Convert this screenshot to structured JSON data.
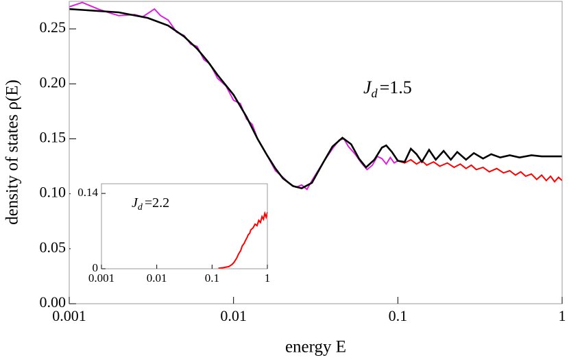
{
  "chart_data": [
    {
      "type": "line",
      "xlabel": "energy E",
      "ylabel": "density of states ρ(E)",
      "annotation": {
        "main": "J",
        "sub": "d",
        "rest": "=1.5"
      },
      "xscale": "log",
      "xlim": [
        0.001,
        1
      ],
      "ylim": [
        0,
        0.275
      ],
      "xticks": [
        0.001,
        0.01,
        0.1,
        1
      ],
      "yticks": [
        {
          "value": 0,
          "label": "0.00"
        },
        0.05,
        {
          "value": 0.1,
          "label": "0.10"
        },
        0.15,
        {
          "value": 0.2,
          "label": "0.20"
        },
        0.25
      ],
      "series": [
        {
          "color": "#e020e0",
          "x": [
            0.001,
            0.0012,
            0.0015,
            0.0018,
            0.002,
            0.0025,
            0.0028,
            0.0033,
            0.0036,
            0.004,
            0.0045,
            0.005,
            0.0055,
            0.006,
            0.0066,
            0.0072,
            0.008,
            0.009,
            0.01,
            0.011,
            0.012,
            0.013,
            0.014,
            0.015,
            0.016,
            0.018,
            0.02,
            0.022,
            0.024,
            0.026,
            0.028,
            0.03,
            0.033,
            0.036,
            0.04,
            0.044,
            0.047,
            0.05,
            0.055,
            0.06,
            0.065,
            0.07,
            0.075,
            0.08,
            0.085,
            0.09,
            0.095,
            0.1
          ],
          "values": [
            0.27,
            0.274,
            0.268,
            0.264,
            0.262,
            0.263,
            0.261,
            0.268,
            0.262,
            0.258,
            0.247,
            0.244,
            0.236,
            0.234,
            0.222,
            0.218,
            0.205,
            0.198,
            0.185,
            0.182,
            0.168,
            0.163,
            0.15,
            0.142,
            0.135,
            0.121,
            0.115,
            0.109,
            0.106,
            0.108,
            0.104,
            0.112,
            0.122,
            0.131,
            0.141,
            0.149,
            0.15,
            0.143,
            0.136,
            0.128,
            0.122,
            0.126,
            0.134,
            0.132,
            0.127,
            0.133,
            0.128,
            0.13
          ]
        },
        {
          "color": "#ff0000",
          "x": [
            0.1,
            0.11,
            0.12,
            0.13,
            0.14,
            0.15,
            0.165,
            0.18,
            0.2,
            0.22,
            0.24,
            0.26,
            0.28,
            0.3,
            0.33,
            0.36,
            0.4,
            0.44,
            0.48,
            0.52,
            0.56,
            0.6,
            0.65,
            0.7,
            0.75,
            0.8,
            0.85,
            0.9,
            0.95,
            1
          ],
          "values": [
            0.13,
            0.128,
            0.131,
            0.127,
            0.13,
            0.126,
            0.129,
            0.125,
            0.128,
            0.124,
            0.127,
            0.123,
            0.126,
            0.122,
            0.124,
            0.12,
            0.123,
            0.119,
            0.121,
            0.117,
            0.12,
            0.116,
            0.118,
            0.113,
            0.117,
            0.112,
            0.116,
            0.111,
            0.115,
            0.112
          ]
        },
        {
          "color": "#000000",
          "x": [
            0.001,
            0.002,
            0.003,
            0.004,
            0.005,
            0.006,
            0.007,
            0.008,
            0.01,
            0.012,
            0.014,
            0.016,
            0.018,
            0.02,
            0.023,
            0.026,
            0.03,
            0.035,
            0.04,
            0.046,
            0.052,
            0.058,
            0.064,
            0.072,
            0.08,
            0.085,
            0.092,
            0.1,
            0.11,
            0.12,
            0.13,
            0.14,
            0.155,
            0.17,
            0.19,
            0.21,
            0.23,
            0.26,
            0.29,
            0.33,
            0.37,
            0.42,
            0.48,
            0.55,
            0.65,
            0.75,
            0.85,
            1
          ],
          "values": [
            0.268,
            0.265,
            0.26,
            0.253,
            0.243,
            0.232,
            0.22,
            0.208,
            0.19,
            0.17,
            0.15,
            0.135,
            0.123,
            0.114,
            0.107,
            0.105,
            0.11,
            0.128,
            0.143,
            0.151,
            0.145,
            0.132,
            0.124,
            0.131,
            0.142,
            0.144,
            0.138,
            0.13,
            0.129,
            0.141,
            0.136,
            0.129,
            0.14,
            0.131,
            0.139,
            0.131,
            0.138,
            0.131,
            0.137,
            0.132,
            0.136,
            0.133,
            0.135,
            0.133,
            0.135,
            0.134,
            0.134,
            0.134
          ]
        }
      ]
    },
    {
      "type": "line",
      "annotation": {
        "main": "J",
        "sub": "d",
        "rest": "=2.2"
      },
      "xscale": "log",
      "xlim": [
        0.001,
        1
      ],
      "ylim": [
        0,
        0.158
      ],
      "xticks": [
        0.001,
        0.01,
        0.1,
        1
      ],
      "yticks": [
        0,
        0.14
      ],
      "series": [
        {
          "color": "#ff0000",
          "x": [
            0.13,
            0.16,
            0.2,
            0.23,
            0.25,
            0.28,
            0.3,
            0.33,
            0.35,
            0.38,
            0.4,
            0.43,
            0.45,
            0.48,
            0.5,
            0.55,
            0.6,
            0.65,
            0.7,
            0.75,
            0.8,
            0.85,
            0.9,
            0.95,
            1
          ],
          "values": [
            0.001,
            0.002,
            0.004,
            0.008,
            0.012,
            0.02,
            0.027,
            0.034,
            0.042,
            0.047,
            0.052,
            0.058,
            0.063,
            0.066,
            0.072,
            0.076,
            0.083,
            0.08,
            0.09,
            0.086,
            0.097,
            0.092,
            0.103,
            0.096,
            0.105
          ]
        }
      ]
    }
  ]
}
